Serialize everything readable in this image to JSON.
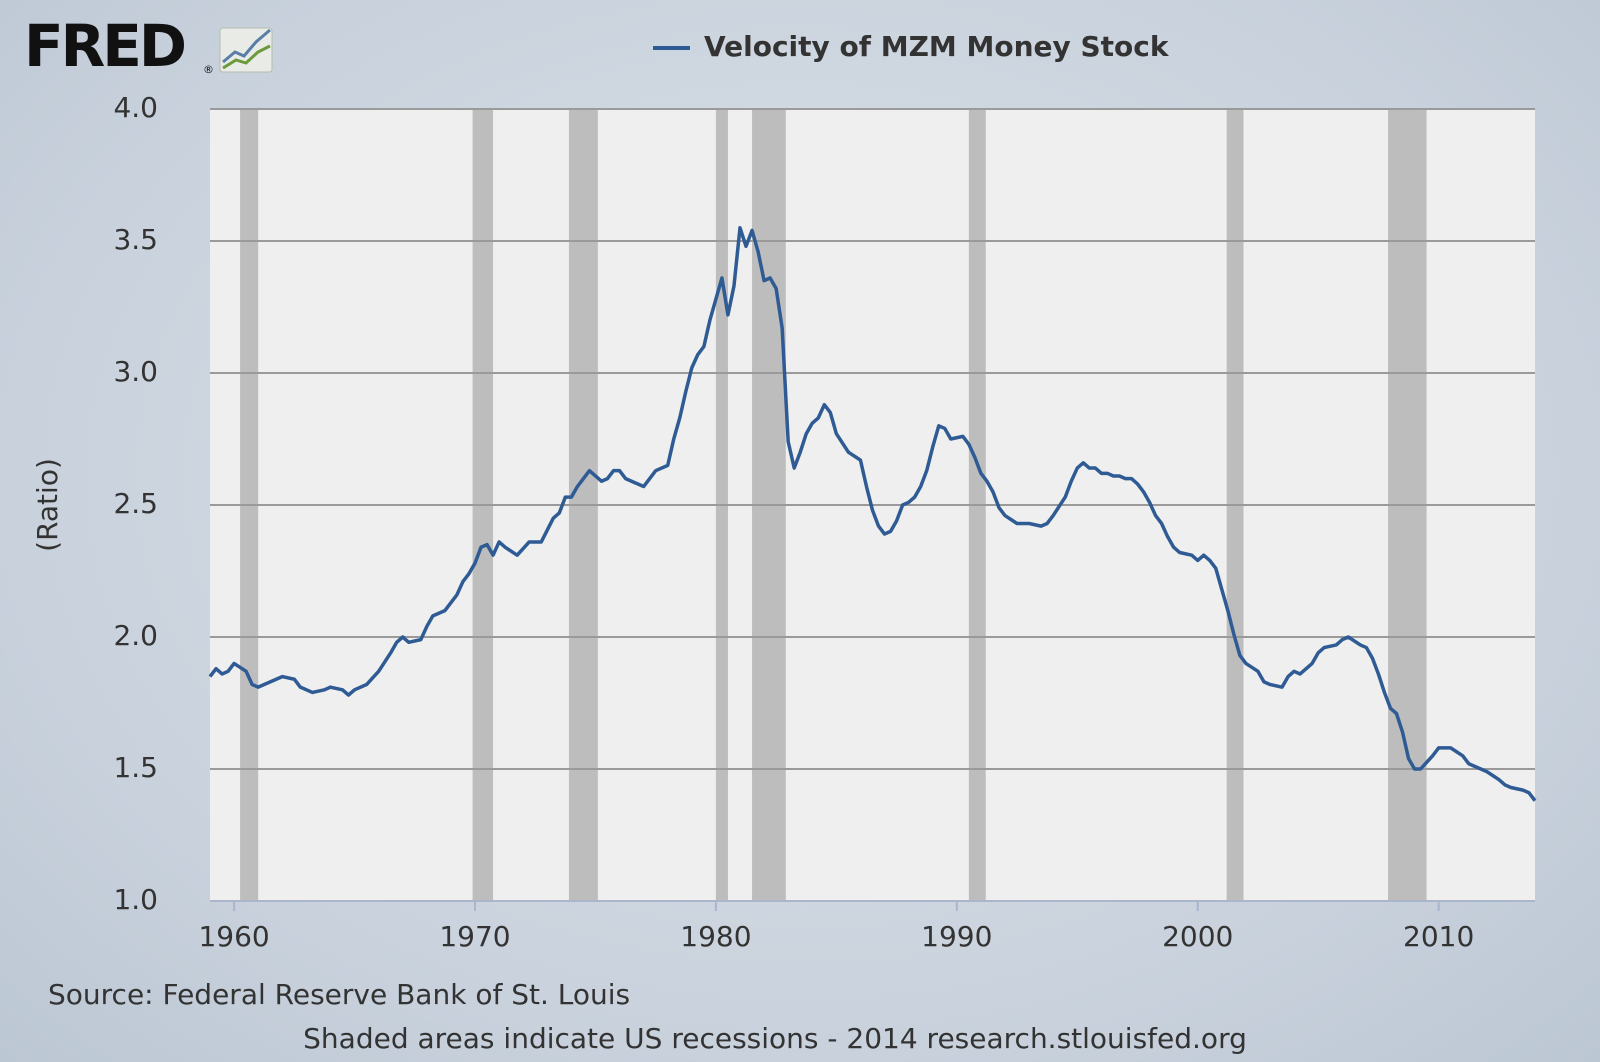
{
  "chart_data": {
    "type": "line",
    "logo": "FRED",
    "logo_mark": "®",
    "y_label": "(Ratio)",
    "source": "Source: Federal Reserve Bank of St. Louis",
    "note": "Shaded areas indicate US recessions - 2014 research.stlouisfed.org",
    "xlim": [
      1959,
      2014
    ],
    "xticks": [
      1960,
      1970,
      1980,
      1990,
      2000,
      2010
    ],
    "ylim": [
      1,
      4
    ],
    "yticks": [
      {
        "value": 1,
        "label": "1.0"
      },
      {
        "value": 1.5,
        "label": "1.5"
      },
      {
        "value": 2,
        "label": "2.0"
      },
      {
        "value": 2.5,
        "label": "2.5"
      },
      {
        "value": 3,
        "label": "3.0"
      },
      {
        "value": 3.5,
        "label": "3.5"
      },
      {
        "value": 4,
        "label": "4.0"
      }
    ],
    "grid": true,
    "recessions": [
      [
        1960.25,
        1961.0
      ],
      [
        1969.9,
        1970.75
      ],
      [
        1973.9,
        1975.1
      ],
      [
        1980.0,
        1980.5
      ],
      [
        1981.5,
        1982.9
      ],
      [
        1990.5,
        1991.2
      ],
      [
        2001.2,
        2001.9
      ],
      [
        2007.9,
        2009.5
      ]
    ],
    "recession_color": "#bdbdbd",
    "x": [
      1959.0,
      1959.25,
      1959.5,
      1959.75,
      1960.0,
      1960.5,
      1960.75,
      1961.0,
      1961.5,
      1962.0,
      1962.5,
      1962.75,
      1963.25,
      1963.75,
      1964.0,
      1964.5,
      1964.75,
      1965.0,
      1965.5,
      1966.0,
      1966.5,
      1966.75,
      1967.0,
      1967.25,
      1967.75,
      1968.0,
      1968.25,
      1968.75,
      1969.25,
      1969.5,
      1969.75,
      1970.0,
      1970.25,
      1970.5,
      1970.75,
      1971.0,
      1971.25,
      1971.75,
      1972.25,
      1972.75,
      1973.25,
      1973.5,
      1973.75,
      1974.0,
      1974.25,
      1974.75,
      1975.25,
      1975.5,
      1975.75,
      1976.0,
      1976.25,
      1976.75,
      1977.0,
      1977.5,
      1978.0,
      1978.25,
      1978.5,
      1978.75,
      1979.0,
      1979.25,
      1979.5,
      1979.75,
      1980.0,
      1980.25,
      1980.5,
      1980.75,
      1981.0,
      1981.25,
      1981.5,
      1981.75,
      1982.0,
      1982.25,
      1982.5,
      1982.75,
      1983.0,
      1983.25,
      1983.5,
      1983.75,
      1984.0,
      1984.25,
      1984.5,
      1984.75,
      1985.0,
      1985.5,
      1986.0,
      1986.25,
      1986.5,
      1986.75,
      1987.0,
      1987.25,
      1987.5,
      1987.75,
      1988.0,
      1988.25,
      1988.5,
      1988.75,
      1989.0,
      1989.25,
      1989.5,
      1989.75,
      1990.25,
      1990.5,
      1990.75,
      1991.0,
      1991.25,
      1991.5,
      1991.75,
      1992.0,
      1992.5,
      1993.0,
      1993.5,
      1993.75,
      1994.0,
      1994.5,
      1994.75,
      1995.0,
      1995.25,
      1995.5,
      1995.75,
      1996.0,
      1996.25,
      1996.5,
      1996.75,
      1997.0,
      1997.25,
      1997.5,
      1997.75,
      1998.0,
      1998.25,
      1998.5,
      1998.75,
      1999.0,
      1999.25,
      1999.75,
      2000.0,
      2000.25,
      2000.5,
      2000.75,
      2001.0,
      2001.25,
      2001.5,
      2001.75,
      2002.0,
      2002.5,
      2002.75,
      2003.0,
      2003.5,
      2003.75,
      2004.0,
      2004.25,
      2004.75,
      2005.0,
      2005.25,
      2005.75,
      2006.0,
      2006.25,
      2006.75,
      2007.0,
      2007.25,
      2007.5,
      2007.75,
      2008.0,
      2008.25,
      2008.5,
      2008.75,
      2009.0,
      2009.25,
      2009.75,
      2010.0,
      2010.5,
      2011.0,
      2011.25,
      2011.5,
      2012.0,
      2012.5,
      2012.75,
      2013.0,
      2013.5,
      2013.75,
      2014.0
    ],
    "series": [
      {
        "name": "Velocity of MZM Money Stock",
        "color": "#2f5b94",
        "values": [
          1.85,
          1.88,
          1.86,
          1.87,
          1.9,
          1.87,
          1.82,
          1.81,
          1.83,
          1.85,
          1.84,
          1.81,
          1.79,
          1.8,
          1.81,
          1.8,
          1.78,
          1.8,
          1.82,
          1.87,
          1.94,
          1.98,
          2.0,
          1.98,
          1.99,
          2.04,
          2.08,
          2.1,
          2.16,
          2.21,
          2.24,
          2.28,
          2.34,
          2.35,
          2.31,
          2.36,
          2.34,
          2.31,
          2.36,
          2.36,
          2.45,
          2.47,
          2.53,
          2.53,
          2.57,
          2.63,
          2.59,
          2.6,
          2.63,
          2.63,
          2.6,
          2.58,
          2.57,
          2.63,
          2.65,
          2.75,
          2.83,
          2.93,
          3.02,
          3.07,
          3.1,
          3.2,
          3.28,
          3.36,
          3.22,
          3.33,
          3.55,
          3.48,
          3.54,
          3.46,
          3.35,
          3.36,
          3.32,
          3.17,
          2.74,
          2.64,
          2.7,
          2.77,
          2.81,
          2.83,
          2.88,
          2.85,
          2.77,
          2.7,
          2.67,
          2.57,
          2.48,
          2.42,
          2.39,
          2.4,
          2.44,
          2.5,
          2.51,
          2.53,
          2.57,
          2.63,
          2.72,
          2.8,
          2.79,
          2.75,
          2.76,
          2.73,
          2.68,
          2.62,
          2.59,
          2.55,
          2.49,
          2.46,
          2.43,
          2.43,
          2.42,
          2.43,
          2.46,
          2.53,
          2.59,
          2.64,
          2.66,
          2.64,
          2.64,
          2.62,
          2.62,
          2.61,
          2.61,
          2.6,
          2.6,
          2.58,
          2.55,
          2.51,
          2.46,
          2.43,
          2.38,
          2.34,
          2.32,
          2.31,
          2.29,
          2.31,
          2.29,
          2.26,
          2.18,
          2.1,
          2.01,
          1.93,
          1.9,
          1.87,
          1.83,
          1.82,
          1.81,
          1.85,
          1.87,
          1.86,
          1.9,
          1.94,
          1.96,
          1.97,
          1.99,
          2.0,
          1.97,
          1.96,
          1.92,
          1.86,
          1.79,
          1.73,
          1.71,
          1.64,
          1.54,
          1.5,
          1.5,
          1.55,
          1.58,
          1.58,
          1.55,
          1.52,
          1.51,
          1.49,
          1.46,
          1.44,
          1.43,
          1.42,
          1.41,
          1.38
        ]
      }
    ]
  }
}
